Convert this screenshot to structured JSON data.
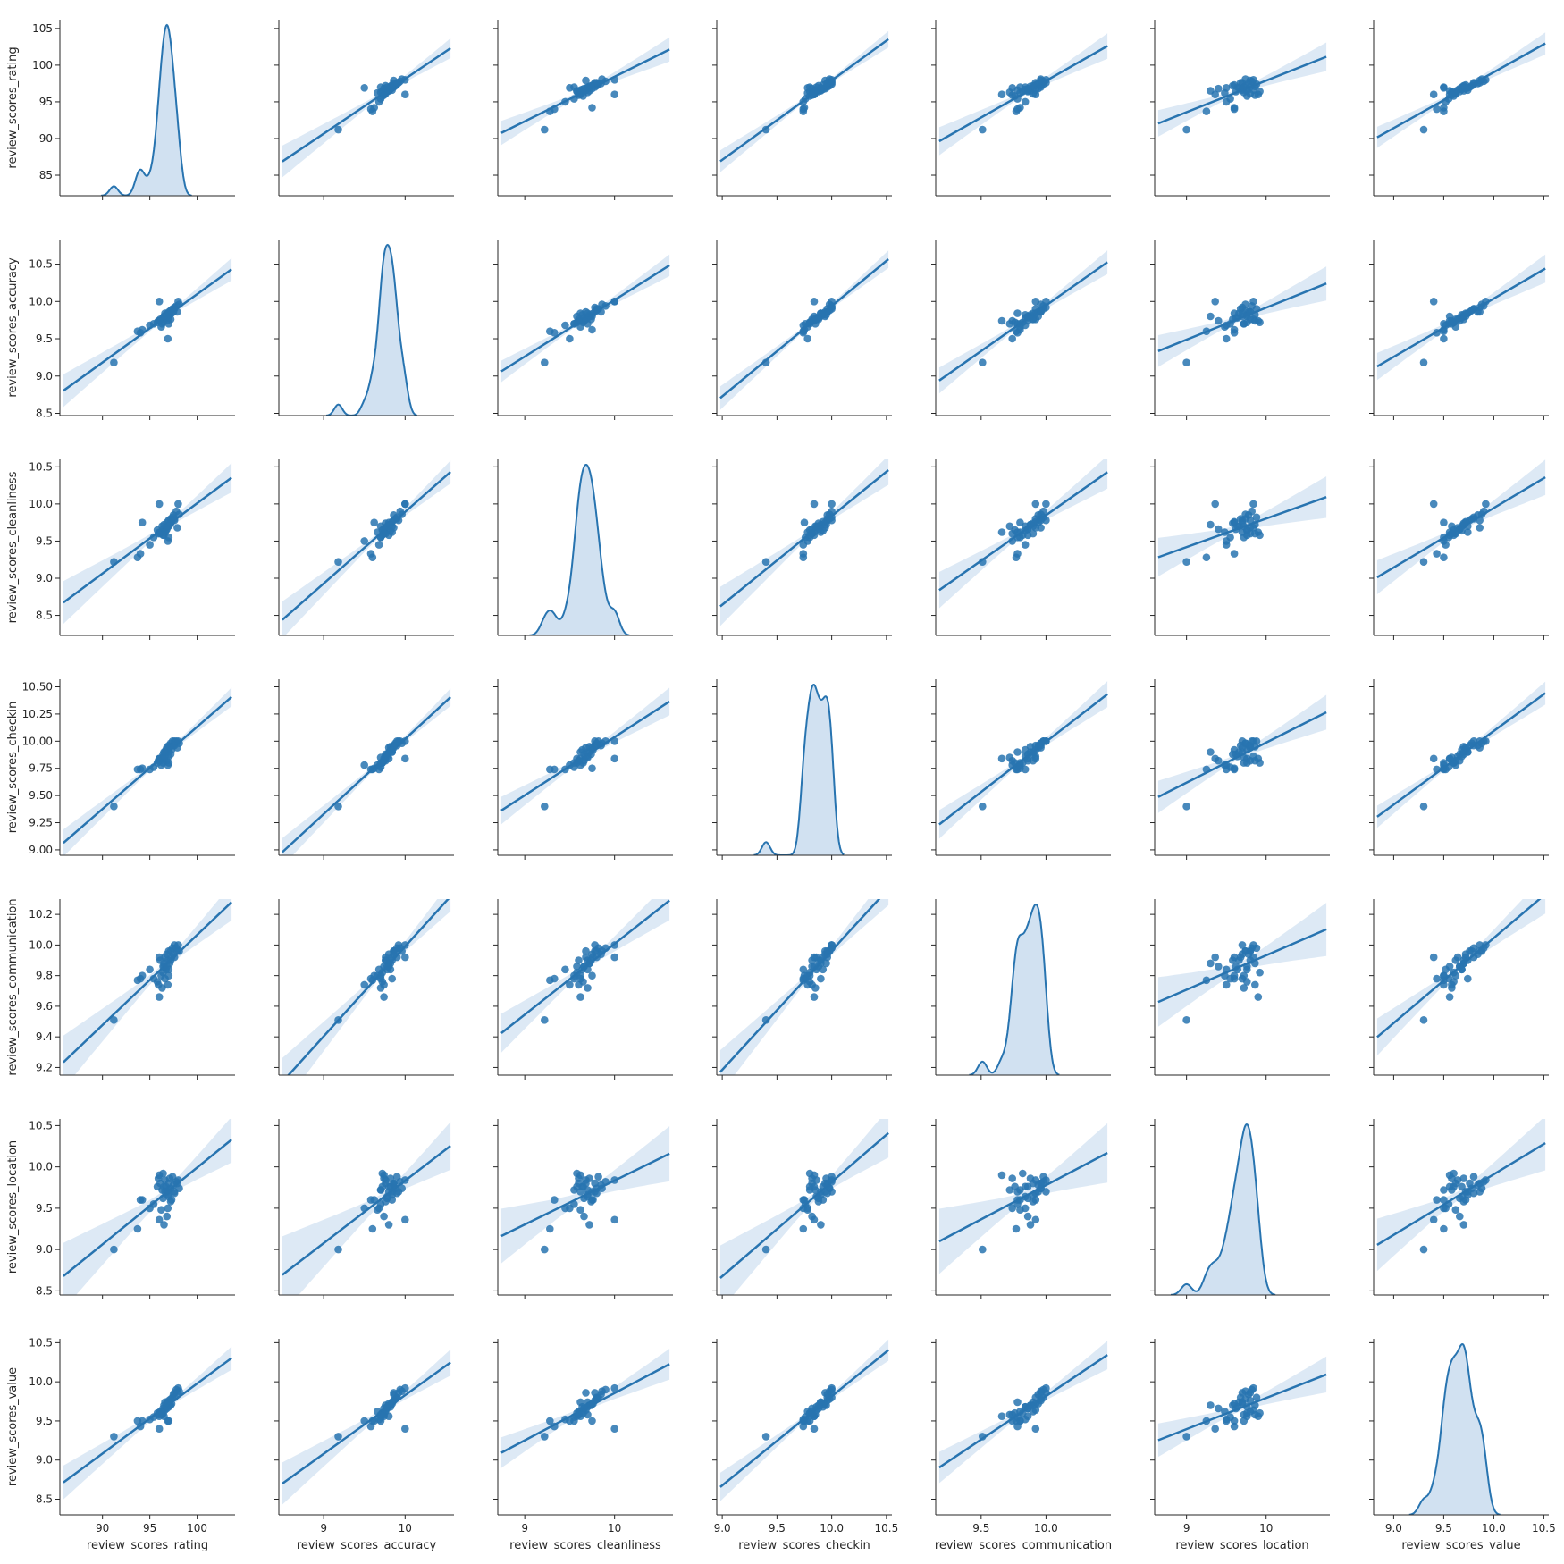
{
  "chart_data": {
    "type": "scatter",
    "grid": false,
    "colors": {
      "main": "#2874B0",
      "band": "#C6DBEF",
      "kde_fill": "#C9DCEE",
      "axes": "#262626"
    },
    "variables": [
      "review_scores_rating",
      "review_scores_accuracy",
      "review_scores_cleanliness",
      "review_scores_checkin",
      "review_scores_communication",
      "review_scores_location",
      "review_scores_value"
    ],
    "x_ranges": [
      [
        85.5,
        104
      ],
      [
        8.45,
        10.6
      ],
      [
        8.7,
        10.65
      ],
      [
        8.95,
        10.55
      ],
      [
        9.15,
        10.5
      ],
      [
        8.6,
        10.8
      ],
      [
        8.8,
        10.55
      ]
    ],
    "y_ranges": [
      [
        82.2,
        106.2
      ],
      [
        8.47,
        10.83
      ],
      [
        8.23,
        10.6
      ],
      [
        8.95,
        10.57
      ],
      [
        9.15,
        10.3
      ],
      [
        8.45,
        10.58
      ],
      [
        8.3,
        10.55
      ]
    ],
    "x_ticks": [
      [
        "90",
        "95",
        "100"
      ],
      [
        "9",
        "10"
      ],
      [
        "9",
        "10"
      ],
      [
        "9.0",
        "9.5",
        "10.0",
        "10.5"
      ],
      [
        "9.5",
        "10.0"
      ],
      [
        "9",
        "10"
      ],
      [
        "9.0",
        "9.5",
        "10.0",
        "10.5"
      ]
    ],
    "y_ticks": [
      [
        "85",
        "90",
        "95",
        "100",
        "105"
      ],
      [
        "8.5",
        "9.0",
        "9.5",
        "10.0",
        "10.5"
      ],
      [
        "8.5",
        "9.0",
        "9.5",
        "10.0",
        "10.5"
      ],
      [
        "9.00",
        "9.25",
        "9.50",
        "9.75",
        "10.00",
        "10.25",
        "10.50"
      ],
      [
        "9.2",
        "9.4",
        "9.6",
        "9.8",
        "10.0",
        "10.2"
      ],
      [
        "8.5",
        "9.0",
        "9.5",
        "10.0",
        "10.5"
      ],
      [
        "8.5",
        "9.0",
        "9.5",
        "10.0",
        "10.5"
      ]
    ],
    "points": [
      [
        91.2,
        9.18,
        9.22,
        9.4,
        9.51,
        9.0,
        9.3
      ],
      [
        93.7,
        9.6,
        9.28,
        9.74,
        9.77,
        9.25,
        9.5
      ],
      [
        94.0,
        9.58,
        9.33,
        9.74,
        9.78,
        9.6,
        9.43
      ],
      [
        94.2,
        9.62,
        9.75,
        9.75,
        9.8,
        9.6,
        9.5
      ],
      [
        95.0,
        9.68,
        9.45,
        9.74,
        9.84,
        9.5,
        9.52
      ],
      [
        95.4,
        9.7,
        9.55,
        9.76,
        9.78,
        9.55,
        9.55
      ],
      [
        95.8,
        9.72,
        9.65,
        9.8,
        9.76,
        9.76,
        9.6
      ],
      [
        96.0,
        9.74,
        9.62,
        9.84,
        9.66,
        9.9,
        9.56
      ],
      [
        96.1,
        9.76,
        9.6,
        9.82,
        9.9,
        9.8,
        9.62
      ],
      [
        96.3,
        9.7,
        9.7,
        9.85,
        9.72,
        9.72,
        9.58
      ],
      [
        96.4,
        9.78,
        9.66,
        9.88,
        9.86,
        9.62,
        9.66
      ],
      [
        96.5,
        9.8,
        9.72,
        9.9,
        9.88,
        9.3,
        9.7
      ],
      [
        96.6,
        9.76,
        9.68,
        9.86,
        9.92,
        9.84,
        9.64
      ],
      [
        96.7,
        9.82,
        9.64,
        9.92,
        9.84,
        9.76,
        9.68
      ],
      [
        96.8,
        9.8,
        9.75,
        9.94,
        9.94,
        9.7,
        9.72
      ],
      [
        96.9,
        9.84,
        9.7,
        9.9,
        9.9,
        9.66,
        9.74
      ],
      [
        97.0,
        9.86,
        9.78,
        9.96,
        9.96,
        9.8,
        9.76
      ],
      [
        97.1,
        9.82,
        9.72,
        9.95,
        9.88,
        9.86,
        9.7
      ],
      [
        97.2,
        9.88,
        9.8,
        9.98,
        9.96,
        9.74,
        9.78
      ],
      [
        97.3,
        9.84,
        9.76,
        9.92,
        9.92,
        9.6,
        9.72
      ],
      [
        97.4,
        9.9,
        9.82,
        10.0,
        9.98,
        9.88,
        9.8
      ],
      [
        97.5,
        9.86,
        9.85,
        9.96,
        9.94,
        9.78,
        9.84
      ],
      [
        97.6,
        9.92,
        9.78,
        10.0,
        10.0,
        9.7,
        9.86
      ],
      [
        97.8,
        9.94,
        9.9,
        10.0,
        9.98,
        9.82,
        9.9
      ],
      [
        98.0,
        10.0,
        10.0,
        10.0,
        10.0,
        9.84,
        9.92
      ],
      [
        98.1,
        9.96,
        9.86,
        9.98,
        9.96,
        9.74,
        9.88
      ],
      [
        96.2,
        9.66,
        9.62,
        9.78,
        9.8,
        9.48,
        9.62
      ],
      [
        96.4,
        9.72,
        9.58,
        9.8,
        9.82,
        9.92,
        9.6
      ],
      [
        96.8,
        9.74,
        9.66,
        9.82,
        9.86,
        9.4,
        9.66
      ],
      [
        97.0,
        9.78,
        9.7,
        9.86,
        9.84,
        9.64,
        9.68
      ],
      [
        96.6,
        9.84,
        9.62,
        9.9,
        9.78,
        9.7,
        9.74
      ],
      [
        97.2,
        9.76,
        9.74,
        9.88,
        9.9,
        9.58,
        9.7
      ],
      [
        97.6,
        9.9,
        9.8,
        9.96,
        9.92,
        9.68,
        9.8
      ],
      [
        97.9,
        9.86,
        9.68,
        9.94,
        9.96,
        9.8,
        9.86
      ],
      [
        95.9,
        9.74,
        9.6,
        9.82,
        9.74,
        9.86,
        9.58
      ],
      [
        96.9,
        9.5,
        9.5,
        9.78,
        9.74,
        9.5,
        9.5
      ],
      [
        96.0,
        10.0,
        10.0,
        9.84,
        9.92,
        9.36,
        9.4
      ],
      [
        97.0,
        9.7,
        9.55,
        9.8,
        9.8,
        9.72,
        9.5
      ],
      [
        96.5,
        9.8,
        9.58,
        9.84,
        9.86,
        9.76,
        9.56
      ]
    ],
    "xlabels": [
      "review_scores_rating",
      "review_scores_accuracy",
      "review_scores_cleanliness",
      "review_scores_checkin",
      "review_scores_communication",
      "review_scores_location",
      "review_scores_value"
    ],
    "ylabels": [
      "review_scores_rating",
      "review_scores_accuracy",
      "review_scores_cleanliness",
      "review_scores_checkin",
      "review_scores_communication",
      "review_scores_location",
      "review_scores_value"
    ]
  }
}
